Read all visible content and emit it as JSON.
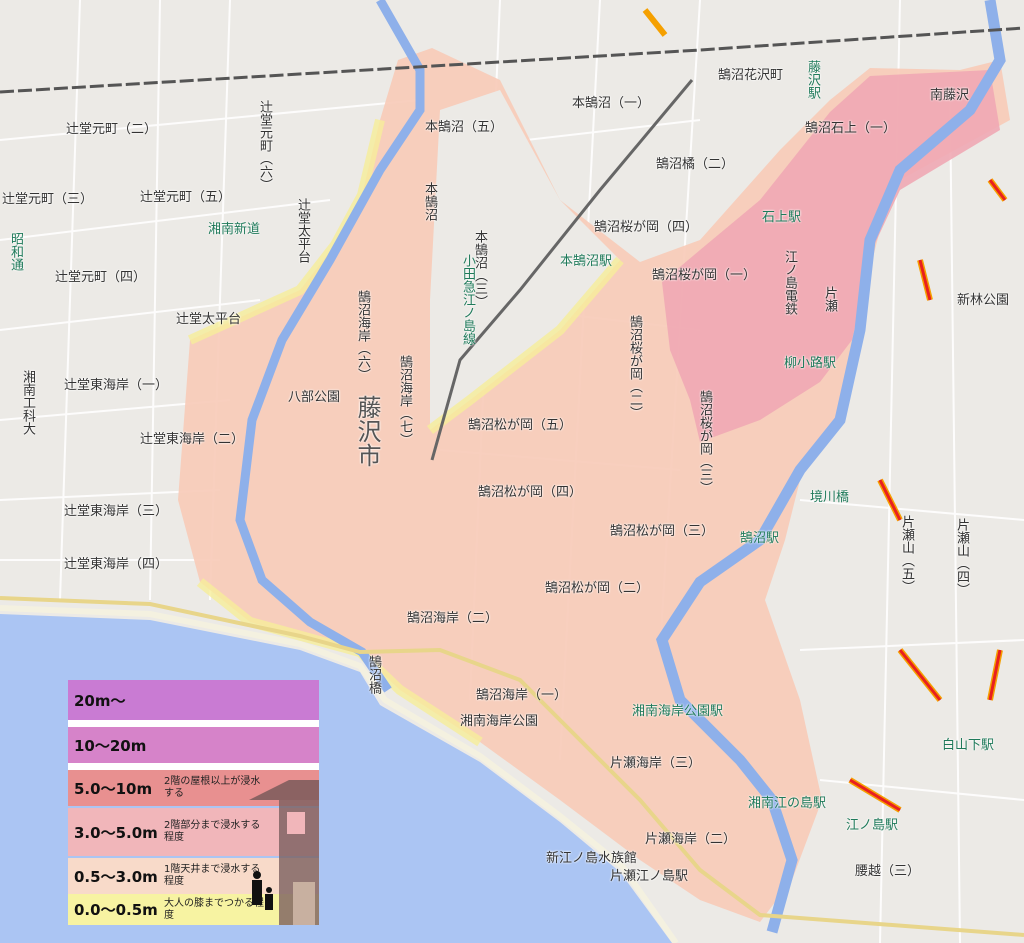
{
  "map": {
    "colors": {
      "sea": "#abc5f3",
      "river": "#8eb0ea",
      "land": "#eceae6",
      "road": "#ffffff",
      "flood_0_05": "#f6ee9a",
      "flood_05_3": "#f7cbb8",
      "flood_3_5": "#f0a9b4",
      "flood_5_10": "#e88c8c"
    },
    "labels": [
      "辻堂元町（二）",
      "辻堂元町（三）",
      "辻堂元町（五）",
      "辻堂元町（四）",
      "辻堂元町（六）",
      "辻堂太平台",
      "湘南新道",
      "昭和通",
      "辻堂太平台",
      "辻堂東海岸（一）",
      "辻堂東海岸（二）",
      "辻堂東海岸（三）",
      "辻堂東海岸（四）",
      "湘南工科大",
      "八部公園",
      "藤沢市",
      "鵠沼海岸（六）",
      "本鵠沼（五）",
      "本鵠沼",
      "本鵠沼（一）",
      "鵠沼花沢町",
      "藤沢駅",
      "南藤沢",
      "鵠沼石上（一）",
      "鵠沼橘（二）",
      "鵠沼桜が岡（四）",
      "本鵠沼駅",
      "石上駅",
      "小田急江ノ島線",
      "鵠沼桜が岡（一）",
      "江ノ島電鉄",
      "片瀬",
      "新林公園",
      "柳小路駅",
      "鵠沼松が岡（五）",
      "鵠沼松が岡（四）",
      "鵠沼松が岡（三）",
      "鵠沼松が岡（二）",
      "鵠沼海岸（二）",
      "鵠沼海岸（一）",
      "鵠沼駅",
      "湘南海岸公園",
      "湘南海岸公園駅",
      "片瀬海岸（三）",
      "片瀬海岸（二）",
      "新江ノ島水族館",
      "片瀬江ノ島駅",
      "鵠沼橋",
      "片瀬山（四）",
      "片瀬山（五）",
      "白山下駅",
      "湘南江の島駅",
      "江ノ島駅",
      "腰越（三）",
      "境川橋",
      "本鵠沼（三）",
      "鵠沼海岸（七）",
      "鵠沼桜が岡（二）",
      "鵠沼桜が岡（三）"
    ]
  },
  "legend": {
    "rows": [
      {
        "range": "20m〜",
        "desc": "",
        "color": "#c97bd3"
      },
      {
        "range": "10〜20m",
        "desc": "",
        "color": "#d683c9"
      },
      {
        "range": "5.0〜10m",
        "desc": "2階の屋根以上が浸水する",
        "color": "#e89090"
      },
      {
        "range": "3.0〜5.0m",
        "desc": "2階部分まで浸水する程度",
        "color": "#f1b6ba"
      },
      {
        "range": "0.5〜3.0m",
        "desc": "1階天井まで浸水する程度",
        "color": "#f8dac9"
      },
      {
        "range": "0.0〜0.5m",
        "desc": "大人の膝までつかる程度",
        "color": "#f7f3a2"
      }
    ]
  }
}
